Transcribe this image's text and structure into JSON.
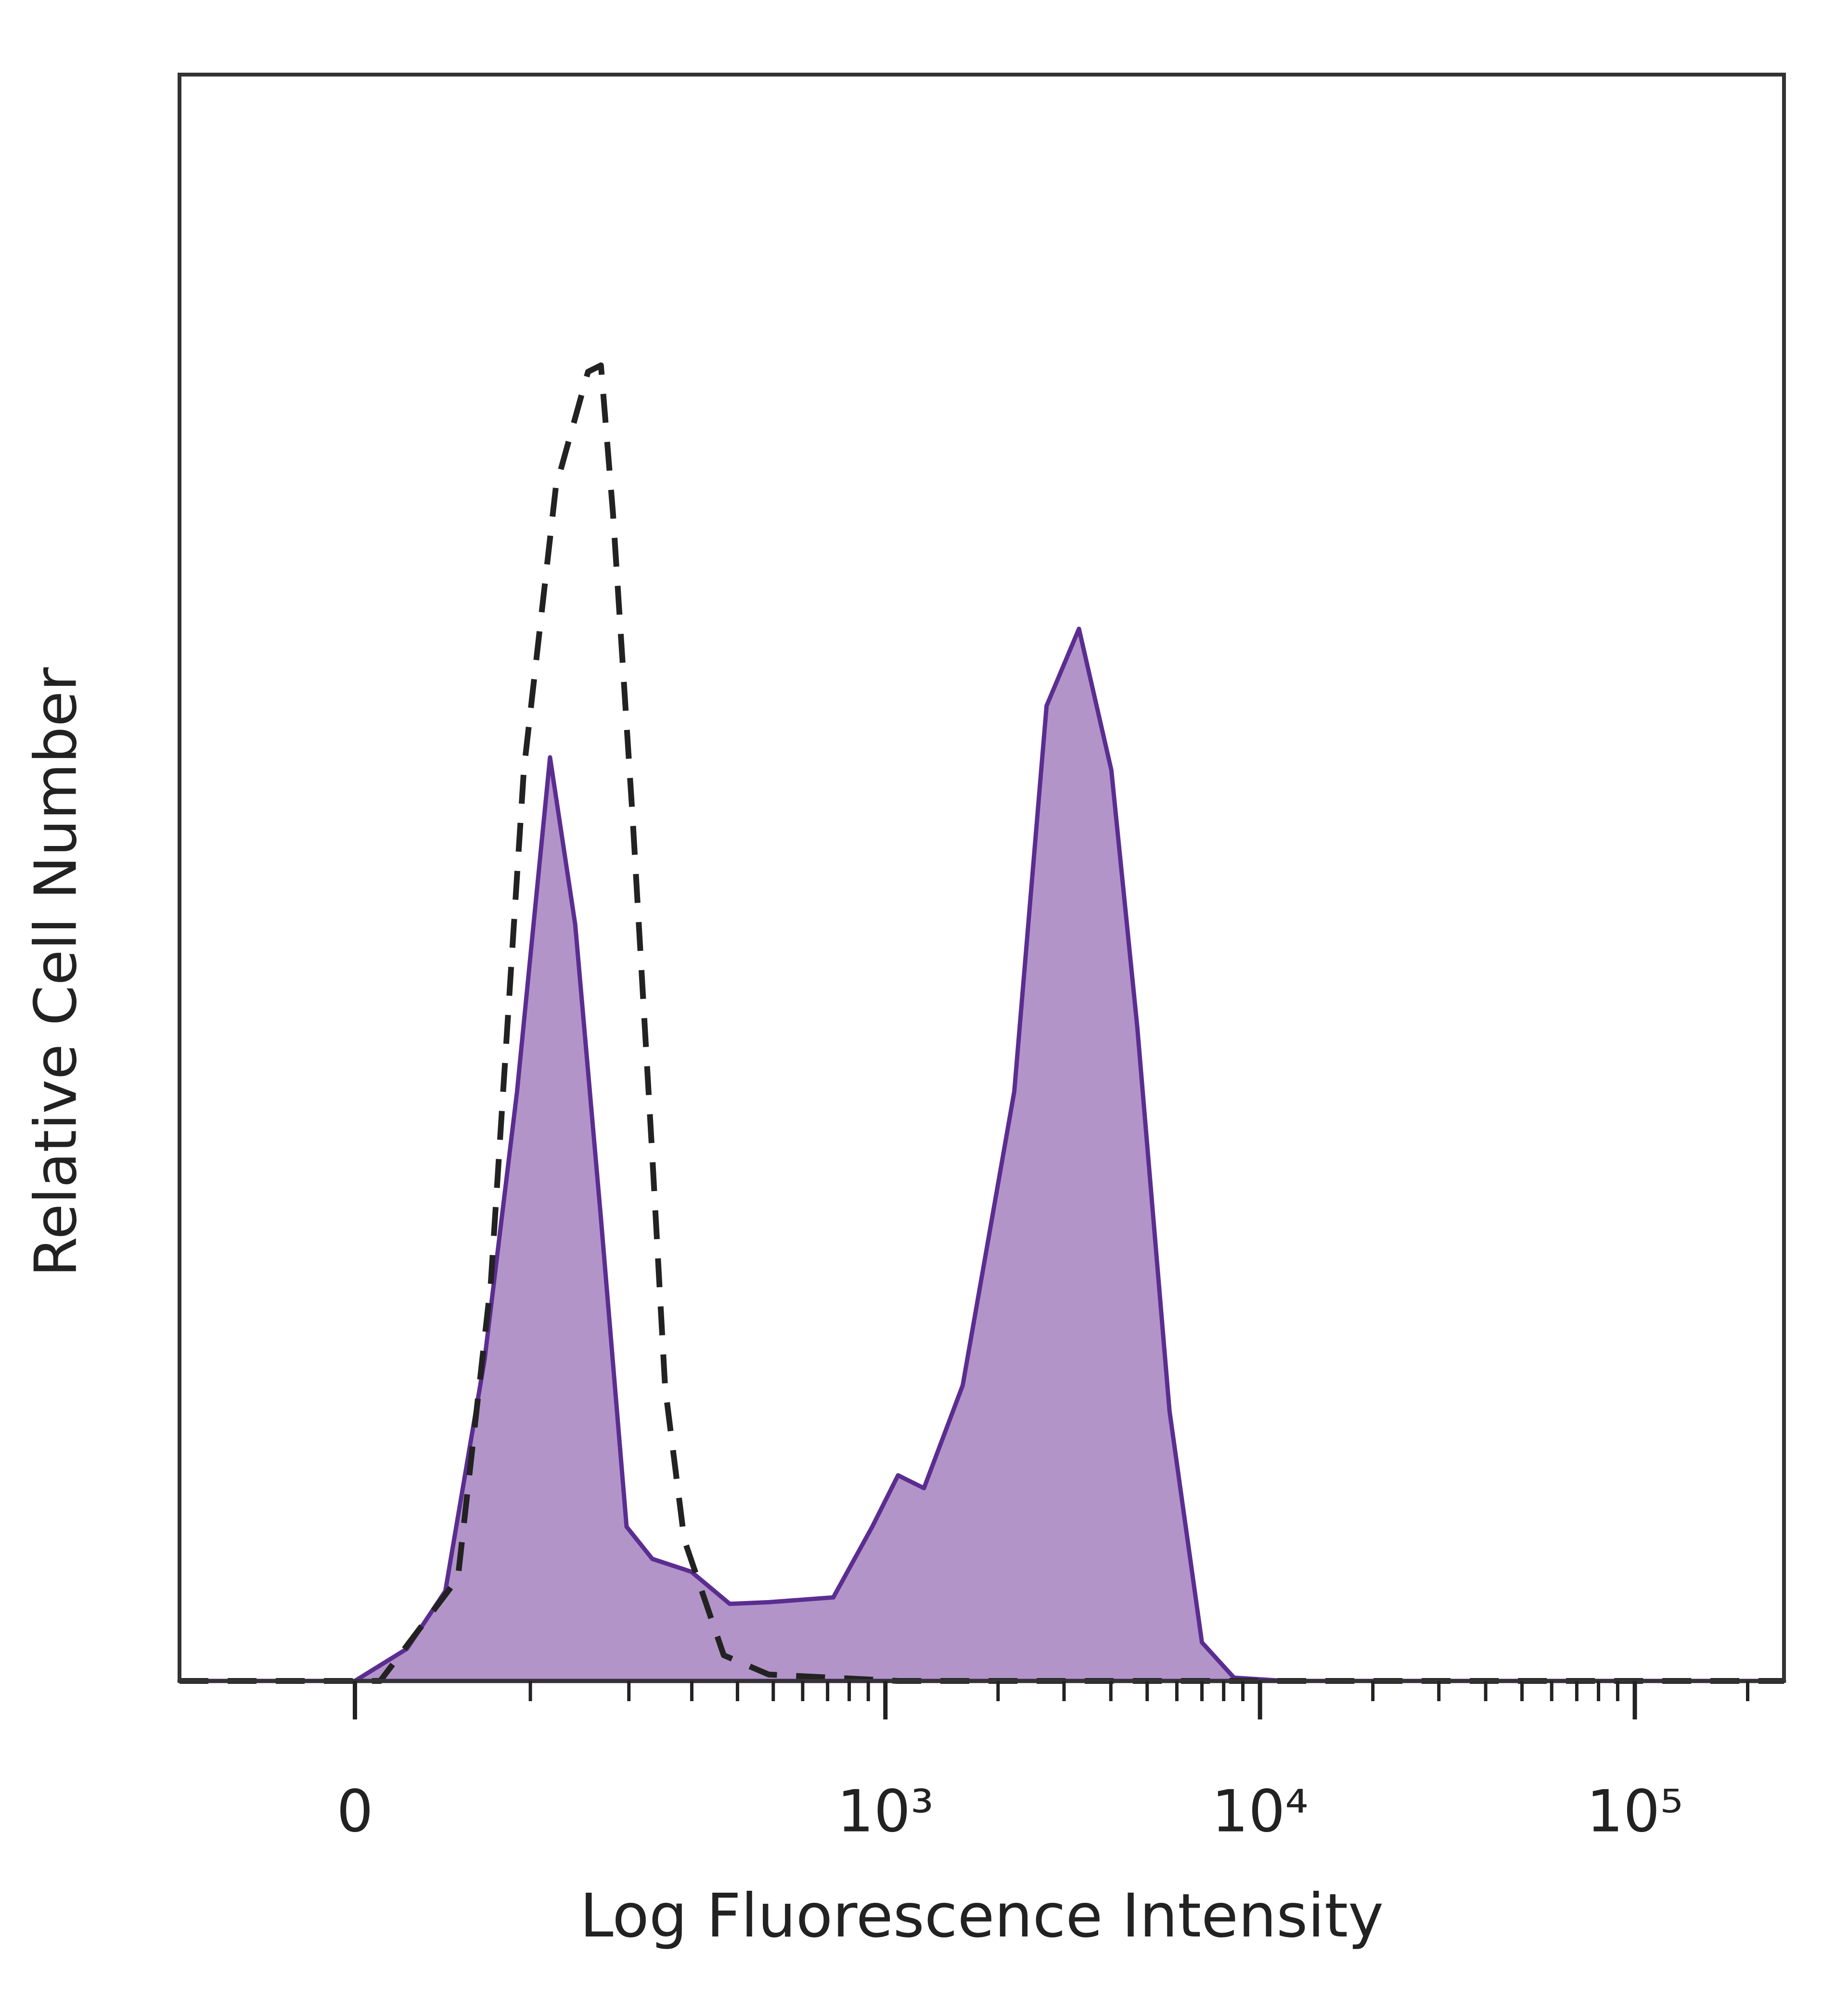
{
  "chart_data": {
    "type": "area",
    "xlabel": "Log Fluorescence Intensity",
    "ylabel": "Relative Cell Number",
    "xscale": "arcsinh",
    "xlim": [
      -100,
      250000
    ],
    "ylim": [
      0,
      100
    ],
    "xticks": [
      0,
      {
        "value": 1000,
        "label": "10³"
      },
      {
        "value": 10000,
        "label": "10⁴"
      },
      {
        "value": 100000,
        "label": "10⁵"
      }
    ],
    "xminorticks": [
      100,
      200,
      300,
      400,
      500,
      600,
      700,
      800,
      900,
      2000,
      3000,
      4000,
      5000,
      6000,
      7000,
      8000,
      9000,
      20000,
      30000,
      40000,
      50000,
      60000,
      70000,
      80000,
      90000,
      200000
    ],
    "series": [
      {
        "color": "#5b2d91",
        "fill": "#b294c9",
        "dashed": false,
        "x": [
          -100,
          0,
          25,
          45,
          68,
          90,
          116,
          139,
          166,
          197,
          233,
          299,
          381,
          486,
          725,
          922,
          1081,
          1268,
          1609,
          2210,
          2695,
          3288,
          4012,
          4705,
          5737,
          7000,
          8524,
          11740,
          250000
        ],
        "values": [
          0,
          0,
          2.0,
          5.6,
          20,
          36.7,
          57.5,
          47.1,
          28.8,
          9.6,
          7.6,
          6.8,
          4.8,
          4.9,
          5.2,
          9.6,
          12.8,
          12.0,
          18.4,
          36.7,
          60.7,
          65.5,
          56.7,
          40.7,
          16.8,
          2.4,
          0.2,
          0,
          0
        ]
      },
      {
        "color": "#222222",
        "fill": "none",
        "dashed": true,
        "x": [
          -100,
          12,
          52,
          72,
          95,
          121,
          152,
          166,
          180,
          205,
          233,
          253,
          286,
          367,
          486,
          1081,
          250000
        ],
        "values": [
          0,
          0,
          6.4,
          24.8,
          56.7,
          74.3,
          81.5,
          81.9,
          72.7,
          53.7,
          32.7,
          18.3,
          8.8,
          1.6,
          0.4,
          0,
          0
        ]
      }
    ]
  }
}
